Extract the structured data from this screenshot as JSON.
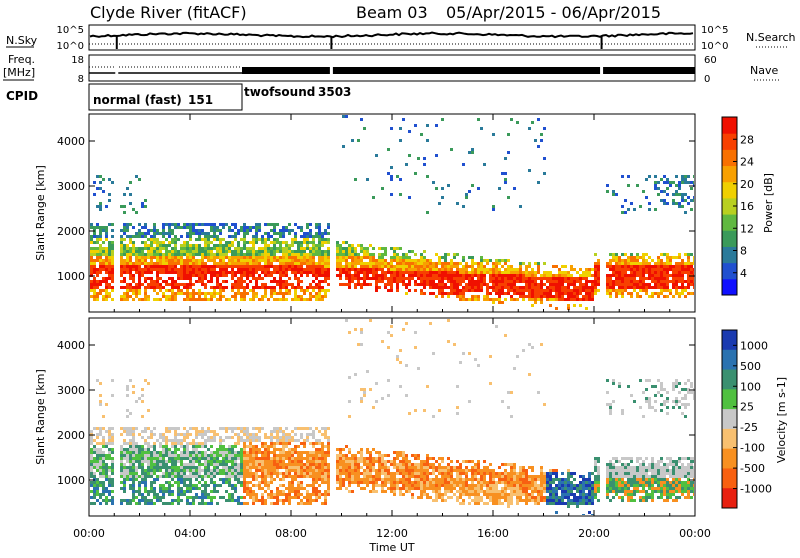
{
  "header": {
    "site": "Clyde River (fitACF)",
    "beam": "Beam 03",
    "date_range": "05/Apr/2015 - 06/Apr/2015"
  },
  "status_panels": {
    "nsky_label": "N.Sky",
    "nsky_ticks": [
      "10^5",
      "10^0"
    ],
    "nsearch_label": "N.Search",
    "nsearch_ticks": [
      "10^5",
      "10^0"
    ],
    "freq_label": "Freq.",
    "freq_unit": "[MHz]",
    "freq_ticks": [
      "18",
      "8"
    ],
    "nave_label": "Nave",
    "nave_ticks": [
      "60",
      "0"
    ],
    "cpid_label": "CPID",
    "modes": [
      {
        "name": "normal (fast)",
        "id": "151",
        "start_hour": 0,
        "end_hour": 6
      },
      {
        "name": "twofsound",
        "id": "3503",
        "start_hour": 6,
        "end_hour": 24
      }
    ],
    "data_gaps_hours": [
      1.1,
      9.6,
      20.3
    ]
  },
  "chart_data": [
    {
      "type": "heatmap",
      "name": "power",
      "ylabel": "Slant Range [km]",
      "ylim": [
        200,
        4600
      ],
      "yticks": [
        "1000",
        "2000",
        "3000",
        "4000"
      ],
      "xlim_hours": [
        0,
        24
      ],
      "colorbar": {
        "label": "Power [dB]",
        "ticks": [
          "4",
          "8",
          "12",
          "16",
          "20",
          "24",
          "28"
        ],
        "range": [
          0,
          32
        ],
        "colors": [
          "#1010ff",
          "#2050d0",
          "#2a7a9a",
          "#3a9a5a",
          "#60b840",
          "#b8d020",
          "#f0d000",
          "#f8a000",
          "#f87000",
          "#f84000",
          "#f01000"
        ]
      }
    },
    {
      "type": "heatmap",
      "name": "velocity",
      "ylabel": "Slant Range [km]",
      "ylim": [
        200,
        4600
      ],
      "yticks": [
        "1000",
        "2000",
        "3000",
        "4000"
      ],
      "xlim_hours": [
        0,
        24
      ],
      "colorbar": {
        "label": "Velocity [m s-1]",
        "ticks": [
          "1000",
          "500",
          "100",
          "25",
          "-25",
          "-100",
          "-500",
          "-1000"
        ],
        "colors": [
          "#1a3ab0",
          "#2a72b0",
          "#3a9070",
          "#50c040",
          "#c8c8c8",
          "#f8c070",
          "#f89020",
          "#f86010",
          "#e82010"
        ]
      }
    }
  ],
  "xaxis": {
    "ticks": [
      "00:00",
      "04:00",
      "08:00",
      "12:00",
      "16:00",
      "20:00",
      "00:00"
    ],
    "label": "Time UT"
  }
}
